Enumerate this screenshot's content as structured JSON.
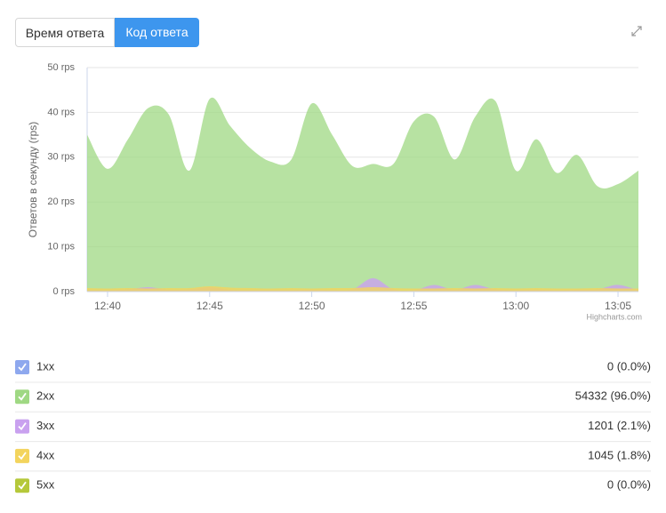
{
  "tabs": [
    "Время ответа",
    "Код ответа"
  ],
  "chart_data": {
    "type": "area",
    "y_label": "Ответов в секунду (rps)",
    "credit": "Highcharts.com",
    "x": [
      "12:39",
      "12:40",
      "12:41",
      "12:42",
      "12:43",
      "12:44",
      "12:45",
      "12:46",
      "12:47",
      "12:48",
      "12:49",
      "12:50",
      "12:51",
      "12:52",
      "12:53",
      "12:54",
      "12:55",
      "12:56",
      "12:57",
      "12:58",
      "12:59",
      "13:00",
      "13:01",
      "13:02",
      "13:03",
      "13:04",
      "13:05",
      "13:06"
    ],
    "xticks": [
      "12:40",
      "12:45",
      "12:50",
      "12:55",
      "13:00",
      "13:05"
    ],
    "ylim": [
      0,
      50
    ],
    "yticks": [
      {
        "value": 0,
        "label": "0 rps"
      },
      {
        "value": 10,
        "label": "10 rps"
      },
      {
        "value": 20,
        "label": "20 rps"
      },
      {
        "value": 30,
        "label": "30 rps"
      },
      {
        "value": 40,
        "label": "40 rps"
      },
      {
        "value": 50,
        "label": "50 rps"
      }
    ],
    "grid": true,
    "series": [
      {
        "name": "1xx",
        "color": "#8ea8ee",
        "total": "0 (0.0%)",
        "values": [
          0,
          0,
          0,
          0,
          0,
          0,
          0,
          0,
          0,
          0,
          0,
          0,
          0,
          0,
          0,
          0,
          0,
          0,
          0,
          0,
          0,
          0,
          0,
          0,
          0,
          0,
          0,
          0
        ]
      },
      {
        "name": "2xx",
        "color": "#9fd883",
        "total": "54332 (96.0%)",
        "values": [
          35,
          27.4,
          34,
          41,
          39.5,
          27,
          43,
          37,
          32,
          29,
          29.5,
          42,
          35,
          28,
          28.5,
          28.5,
          38,
          39,
          29.5,
          39,
          42.5,
          27,
          34,
          26.5,
          30.5,
          23.5,
          24,
          27
        ]
      },
      {
        "name": "3xx",
        "color": "#c9a1ef",
        "total": "1201 (2.1%)",
        "values": [
          0.3,
          0.3,
          0.5,
          1,
          0.4,
          0.5,
          1,
          0.4,
          0.3,
          0.3,
          0.3,
          0.4,
          0.3,
          0.5,
          3,
          0.5,
          0.3,
          1.5,
          0.4,
          1.5,
          0.5,
          0.3,
          0.4,
          0.3,
          0.4,
          0.5,
          1.5,
          0.3
        ]
      },
      {
        "name": "4xx",
        "color": "#f3d45d",
        "total": "1045 (1.8%)",
        "values": [
          0.8,
          0.7,
          0.8,
          0.7,
          0.8,
          0.8,
          1.2,
          0.9,
          0.8,
          0.7,
          0.8,
          0.7,
          0.8,
          0.8,
          1,
          0.8,
          0.7,
          0.7,
          0.8,
          0.7,
          0.8,
          0.7,
          0.8,
          0.7,
          0.7,
          0.8,
          0.7,
          0.7
        ]
      },
      {
        "name": "5xx",
        "color": "#b5c83a",
        "total": "0 (0.0%)",
        "values": [
          0,
          0,
          0,
          0,
          0,
          0,
          0,
          0,
          0,
          0,
          0,
          0,
          0,
          0,
          0,
          0,
          0,
          0,
          0,
          0,
          0,
          0,
          0,
          0,
          0,
          0,
          0,
          0
        ]
      }
    ]
  }
}
